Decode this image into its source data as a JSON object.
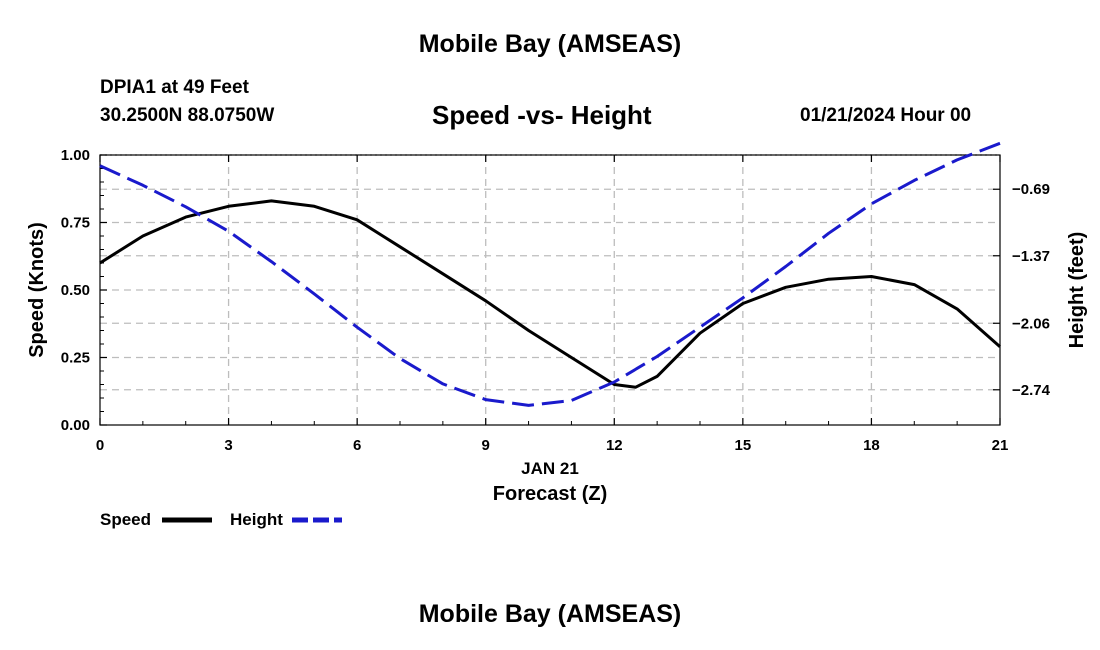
{
  "header": {
    "title": "Mobile Bay (AMSEAS)",
    "station": "DPIA1 at 49 Feet",
    "coordinates": "30.2500N  88.0750W",
    "subtitle": "Speed -vs- Height",
    "datetime": "01/21/2024 Hour 00"
  },
  "footer": {
    "title": "Mobile Bay (AMSEAS)"
  },
  "chart_data": {
    "type": "line",
    "title": "Speed -vs- Height",
    "xlabel": "Forecast (Z)",
    "xlabel_date": "JAN 21",
    "ylabel_left": "Speed (Knots)",
    "ylabel_right": "Height (feet)",
    "xlim": [
      0,
      21
    ],
    "ylim_left": [
      0,
      1
    ],
    "ylim_right": [
      -3.1,
      -0.34
    ],
    "x_ticks": [
      0,
      3,
      6,
      9,
      12,
      15,
      18,
      21
    ],
    "x_tick_labels": [
      "0",
      "3",
      "6",
      "9",
      "12",
      "15",
      "18",
      "21"
    ],
    "y_left_ticks": [
      0,
      0.25,
      0.5,
      0.75,
      1.0
    ],
    "y_left_tick_labels": [
      "0.00",
      "0.25",
      "0.50",
      "0.75",
      "1.00"
    ],
    "y_right_ticks": [
      -0.69,
      -1.37,
      -2.06,
      -2.74
    ],
    "y_right_tick_labels": [
      "−0.69",
      "−1.37",
      "−2.06",
      "−2.74"
    ],
    "grid": true,
    "legend_position": "bottom-left",
    "series": [
      {
        "name": "Speed",
        "axis": "left",
        "color": "#000000",
        "style": "solid",
        "x": [
          0,
          1,
          2,
          3,
          4,
          5,
          6,
          7,
          8,
          9,
          10,
          11,
          12,
          12.5,
          13,
          14,
          15,
          16,
          17,
          18,
          19,
          20,
          21
        ],
        "values": [
          0.6,
          0.7,
          0.77,
          0.81,
          0.83,
          0.81,
          0.76,
          0.66,
          0.56,
          0.46,
          0.35,
          0.25,
          0.15,
          0.14,
          0.18,
          0.34,
          0.45,
          0.51,
          0.54,
          0.55,
          0.52,
          0.43,
          0.29
        ]
      },
      {
        "name": "Height",
        "axis": "right",
        "color": "#1a1acc",
        "style": "dashed",
        "x": [
          0,
          1,
          2,
          3,
          4,
          5,
          6,
          7,
          8,
          9,
          10,
          11,
          12,
          13,
          14,
          15,
          16,
          17,
          18,
          19,
          20,
          21
        ],
        "values": [
          -0.45,
          -0.65,
          -0.87,
          -1.12,
          -1.43,
          -1.76,
          -2.1,
          -2.42,
          -2.68,
          -2.84,
          -2.9,
          -2.85,
          -2.66,
          -2.4,
          -2.1,
          -1.8,
          -1.48,
          -1.14,
          -0.84,
          -0.6,
          -0.39,
          -0.22
        ]
      }
    ]
  }
}
